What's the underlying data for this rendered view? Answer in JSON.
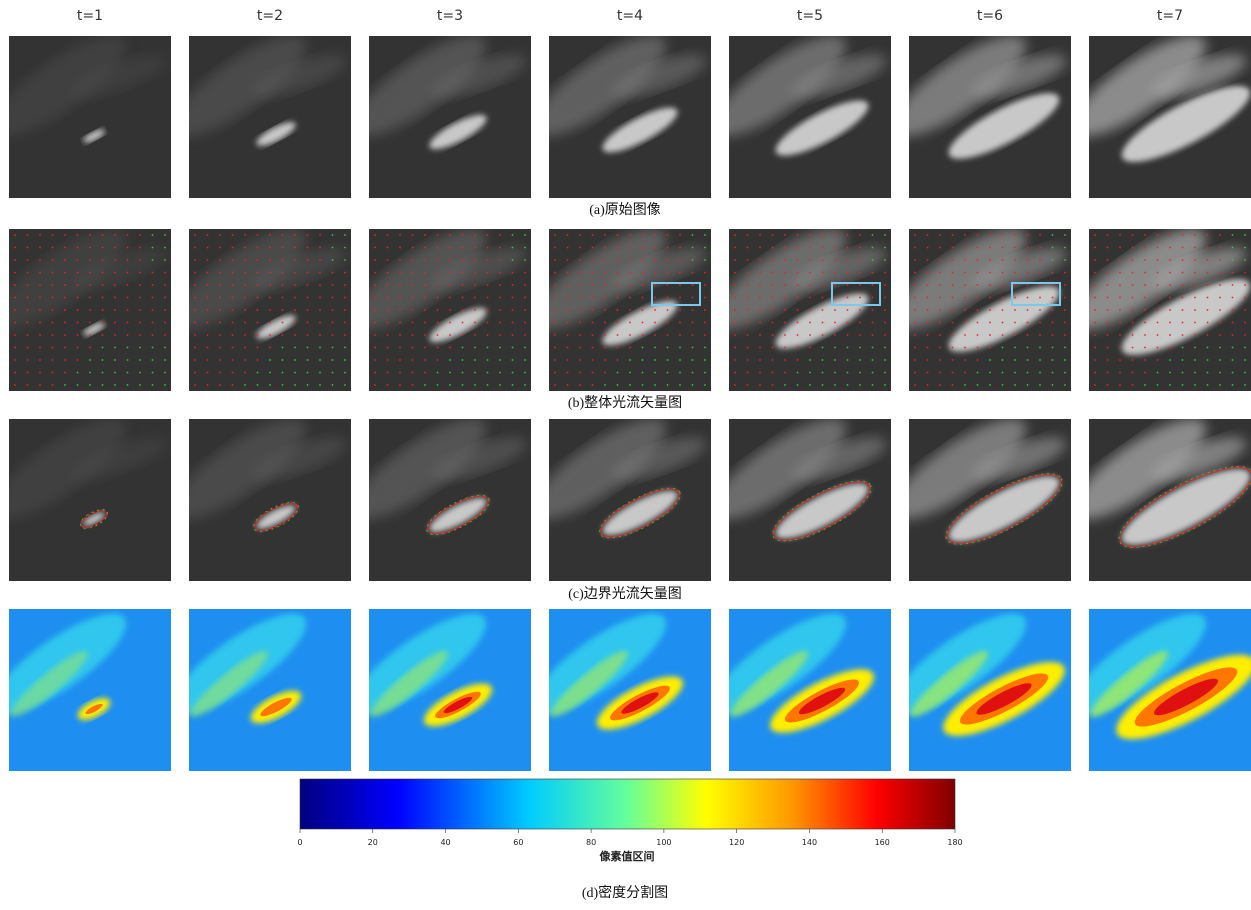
{
  "columns": [
    "t=1",
    "t=2",
    "t=3",
    "t=4",
    "t=5",
    "t=6",
    "t=7"
  ],
  "captions": [
    "(a)原始图像",
    "(b)整体光流矢量图",
    "(c)边界光流矢量图",
    "(d)密度分割图"
  ],
  "colorbar": {
    "lim": [
      0,
      180
    ],
    "ticks": [
      0,
      20,
      40,
      60,
      80,
      100,
      120,
      140,
      160,
      180
    ],
    "label": "像素值区间"
  }
}
